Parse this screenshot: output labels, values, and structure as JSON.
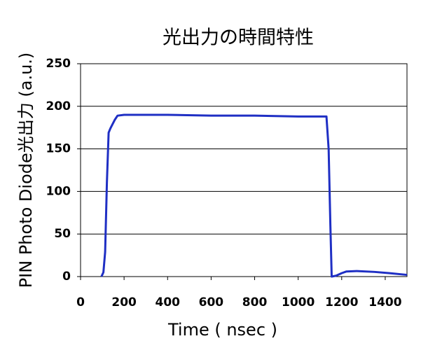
{
  "chart_data": {
    "type": "line",
    "title": "光出力の時間特性",
    "x_label": "Time ( nsec )",
    "y_label": "PIN Photo Diode光出力 (a.u.)",
    "series": [
      {
        "name": "光出力",
        "color": "#1f2fc4",
        "x": [
          96,
          105,
          113,
          121,
          129,
          137,
          145,
          157,
          170,
          200,
          400,
          600,
          800,
          1000,
          1130,
          1140,
          1148,
          1154,
          1174,
          1200,
          1222,
          1270,
          1350,
          1420,
          1500
        ],
        "values": [
          0,
          5,
          29,
          110,
          169,
          174,
          178,
          184,
          189,
          190,
          190,
          189,
          189,
          188,
          188,
          150,
          60,
          0,
          1,
          4,
          6,
          6.5,
          5.5,
          4,
          2
        ]
      }
    ],
    "xlim": [
      0,
      1500
    ],
    "xticks": [
      0,
      200,
      400,
      600,
      800,
      1000,
      1200,
      1400
    ],
    "ylim": [
      0,
      250
    ],
    "yticks": [
      0,
      50,
      100,
      150,
      200,
      250
    ],
    "grid": true
  }
}
